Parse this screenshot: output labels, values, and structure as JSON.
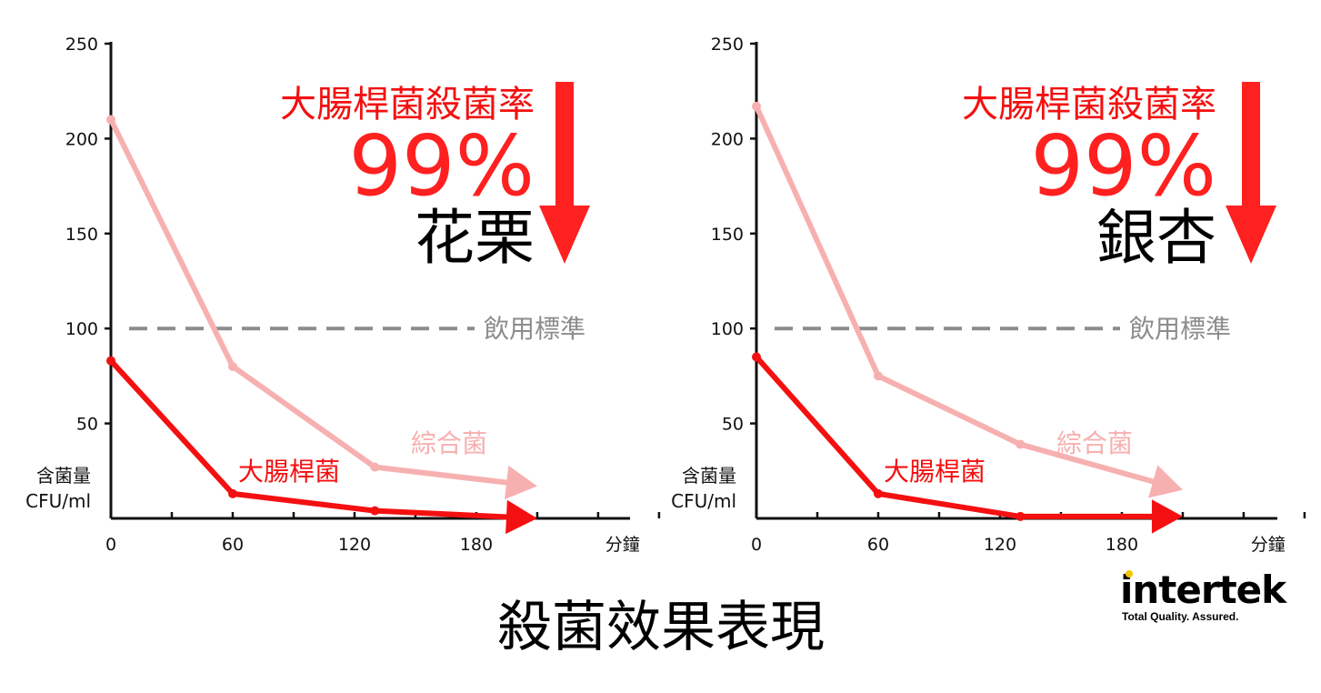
{
  "colors": {
    "ecoli": "#f41010",
    "total": "#f7b0b0",
    "standard": "#8c8c8c",
    "arrow": "#ff2020",
    "logo_dot": "#f5c400"
  },
  "chart_data": [
    {
      "type": "line",
      "subject": "花栗",
      "headline": "大腸桿菌殺菌率",
      "percent": "99%",
      "x_unit": "分鐘",
      "y_unit_line1": "含菌量",
      "y_unit_line2": "CFU/ml",
      "xlim": [
        0,
        270
      ],
      "ylim": [
        0,
        250
      ],
      "x_ticks": [
        0,
        60,
        120,
        180
      ],
      "y_ticks": [
        50,
        100,
        150,
        200,
        250
      ],
      "standard": {
        "value": 100,
        "label": "飲用標準"
      },
      "series": [
        {
          "key": "total",
          "name": "綜合菌",
          "x": [
            0,
            60,
            130
          ],
          "y": [
            210,
            80,
            27
          ],
          "arrow_to": [
            210,
            17
          ]
        },
        {
          "key": "ecoli",
          "name": "大腸桿菌",
          "x": [
            0,
            60,
            130
          ],
          "y": [
            83,
            13,
            4
          ],
          "arrow_to": [
            210,
            0
          ]
        }
      ]
    },
    {
      "type": "line",
      "subject": "銀杏",
      "headline": "大腸桿菌殺菌率",
      "percent": "99%",
      "x_unit": "分鐘",
      "y_unit_line1": "含菌量",
      "y_unit_line2": "CFU/ml",
      "xlim": [
        0,
        270
      ],
      "ylim": [
        0,
        250
      ],
      "x_ticks": [
        0,
        60,
        120,
        180
      ],
      "y_ticks": [
        50,
        100,
        150,
        200,
        250
      ],
      "standard": {
        "value": 100,
        "label": "飲用標準"
      },
      "series": [
        {
          "key": "total",
          "name": "綜合菌",
          "x": [
            0,
            60,
            130
          ],
          "y": [
            217,
            75,
            39
          ],
          "arrow_to": [
            210,
            15
          ]
        },
        {
          "key": "ecoli",
          "name": "大腸桿菌",
          "x": [
            0,
            60,
            130
          ],
          "y": [
            85,
            13,
            1
          ],
          "arrow_to": [
            210,
            1
          ]
        }
      ]
    }
  ],
  "footer_title": "殺菌效果表現",
  "logo": {
    "name": "intertek",
    "tagline": "Total Quality. Assured."
  }
}
